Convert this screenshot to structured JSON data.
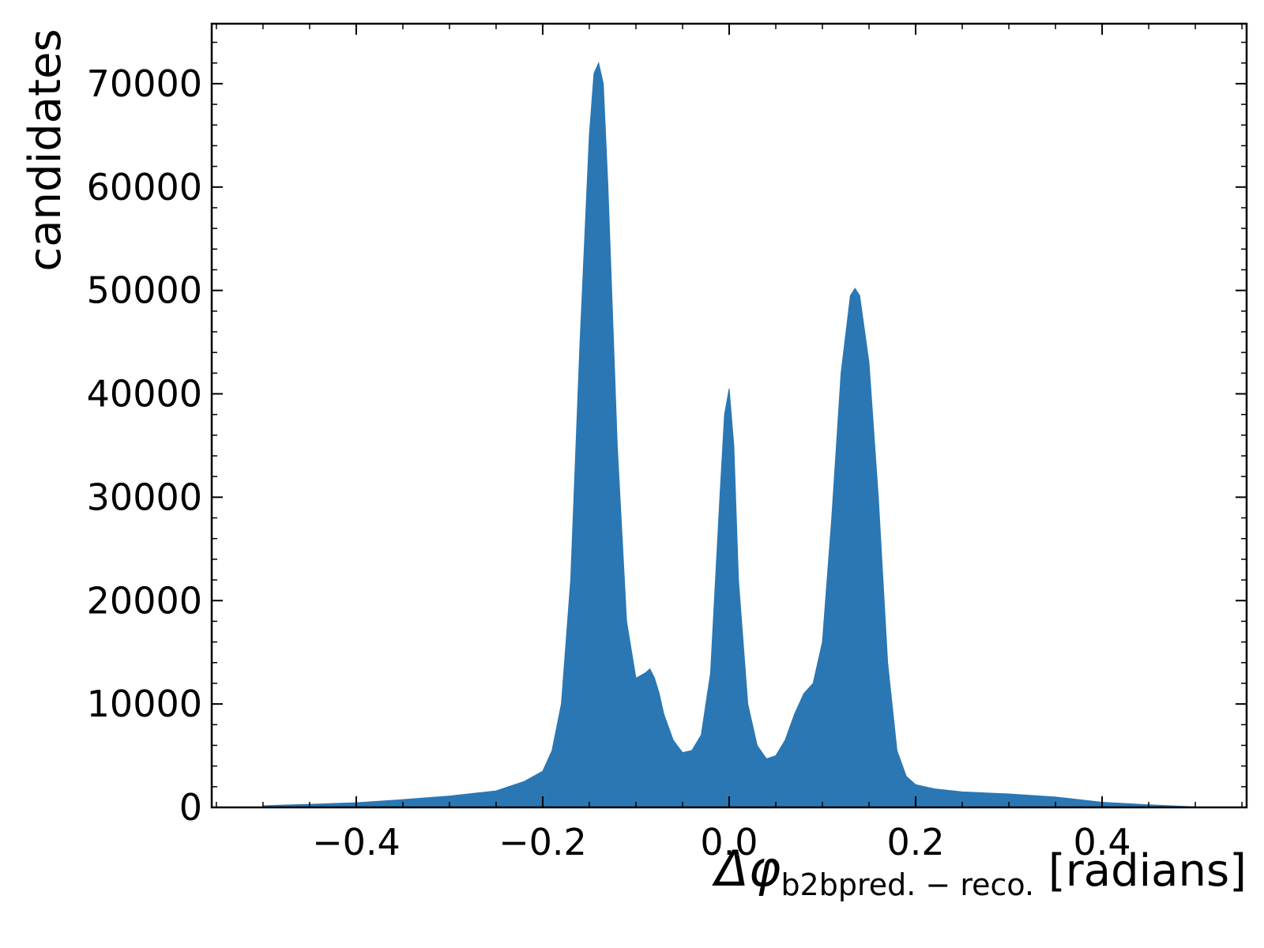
{
  "chart_data": {
    "type": "area",
    "title": "",
    "xlabel": {
      "symbol": "Δφ",
      "subscript": "b2bpred. − reco.",
      "unit": "[radians]"
    },
    "ylabel": "candidates",
    "xlim": [
      -0.555,
      0.555
    ],
    "ylim": [
      0,
      75800
    ],
    "xticks": [
      -0.4,
      -0.2,
      0.0,
      0.2,
      0.4
    ],
    "xtick_labels": [
      "−0.4",
      "−0.2",
      "0.0",
      "0.2",
      "0.4"
    ],
    "yticks": [
      0,
      10000,
      20000,
      30000,
      40000,
      50000,
      60000,
      70000
    ],
    "ytick_labels": [
      "0",
      "10000",
      "20000",
      "30000",
      "40000",
      "50000",
      "60000",
      "70000"
    ],
    "grid": false,
    "color": "#2a77b4",
    "x": [
      -0.5,
      -0.45,
      -0.4,
      -0.35,
      -0.3,
      -0.25,
      -0.22,
      -0.2,
      -0.19,
      -0.18,
      -0.17,
      -0.16,
      -0.15,
      -0.145,
      -0.14,
      -0.135,
      -0.13,
      -0.12,
      -0.11,
      -0.1,
      -0.09,
      -0.085,
      -0.08,
      -0.075,
      -0.07,
      -0.06,
      -0.05,
      -0.04,
      -0.03,
      -0.02,
      -0.01,
      -0.005,
      0.0,
      0.005,
      0.01,
      0.02,
      0.03,
      0.04,
      0.05,
      0.06,
      0.07,
      0.08,
      0.09,
      0.1,
      0.11,
      0.12,
      0.13,
      0.135,
      0.14,
      0.15,
      0.16,
      0.17,
      0.18,
      0.19,
      0.2,
      0.22,
      0.25,
      0.3,
      0.35,
      0.4,
      0.45,
      0.5
    ],
    "y": [
      150,
      300,
      450,
      750,
      1100,
      1600,
      2500,
      3500,
      5500,
      10000,
      22000,
      45000,
      65000,
      71000,
      72000,
      70000,
      60000,
      35000,
      18000,
      12500,
      13000,
      13400,
      12500,
      11000,
      9000,
      6500,
      5300,
      5500,
      7000,
      13000,
      30000,
      38000,
      40500,
      35000,
      22000,
      10000,
      6000,
      4700,
      5000,
      6500,
      9000,
      11000,
      12000,
      16000,
      28000,
      42000,
      49500,
      50200,
      49500,
      43000,
      30000,
      14000,
      5500,
      3000,
      2200,
      1800,
      1500,
      1300,
      1000,
      500,
      250,
      50
    ]
  }
}
